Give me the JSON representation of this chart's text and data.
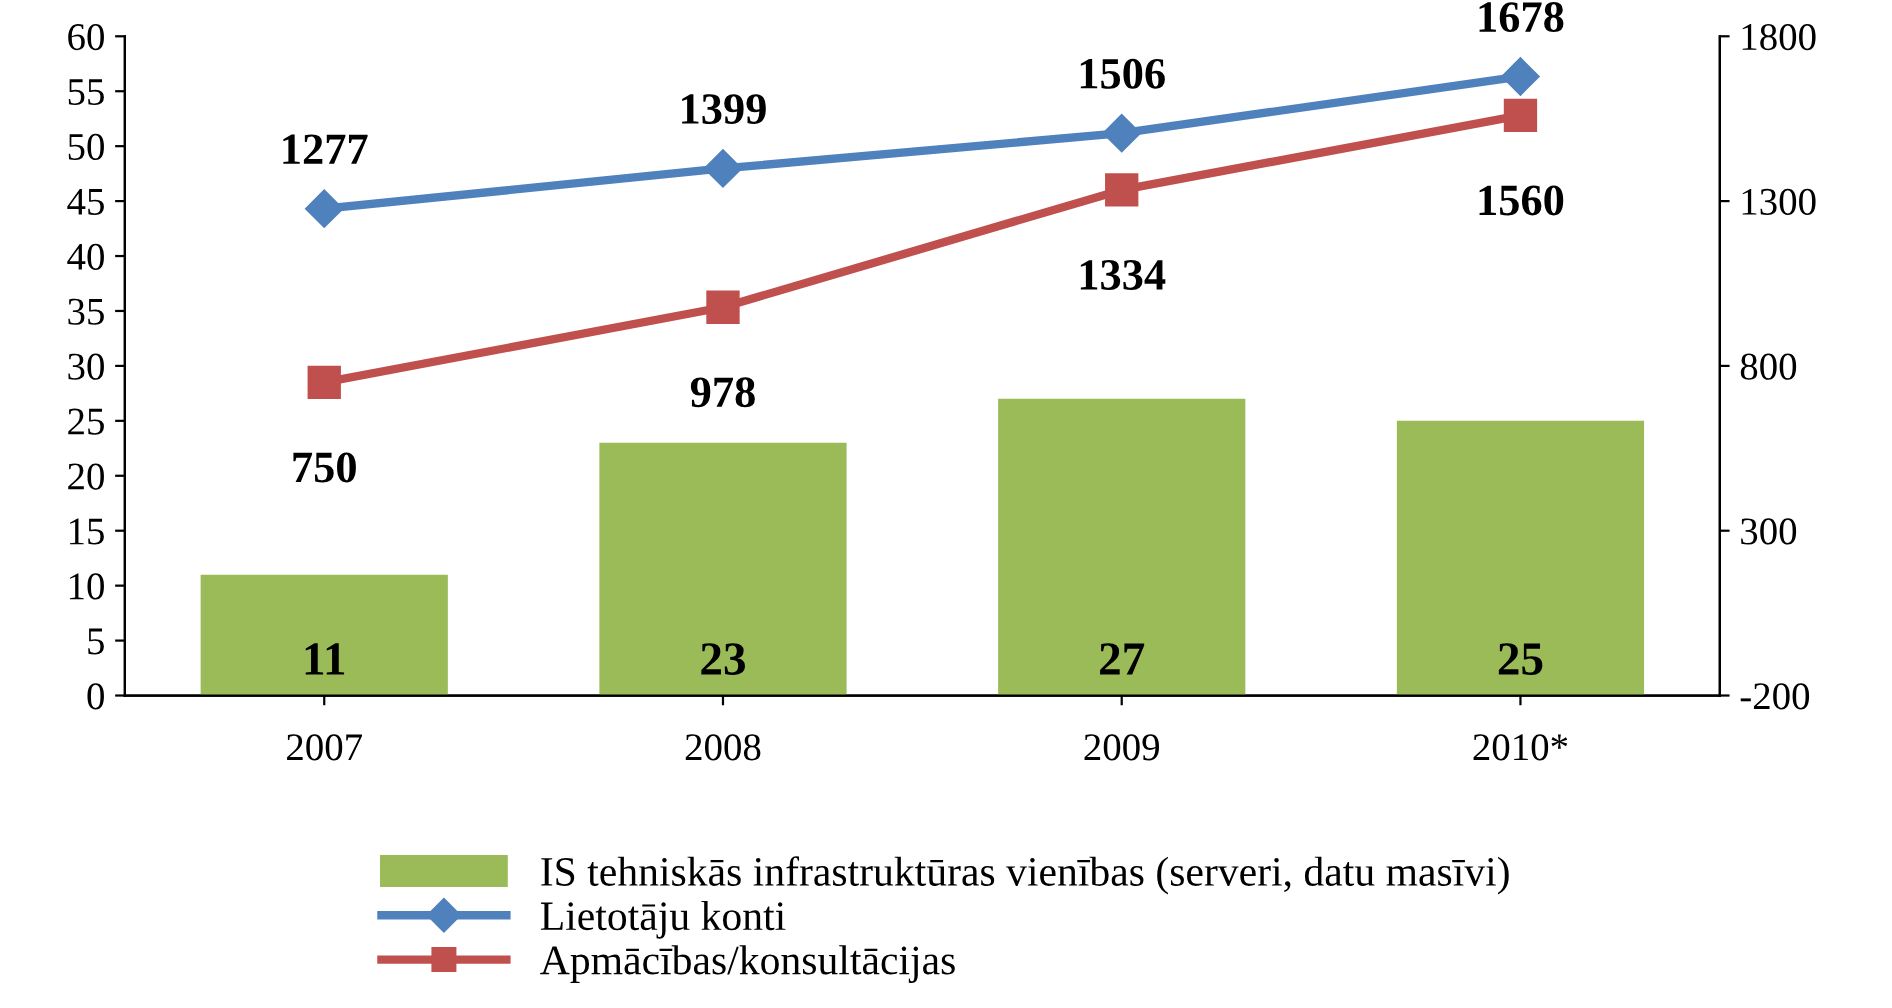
{
  "chart_data": {
    "type": "bar",
    "categories": [
      "2007",
      "2008",
      "2009",
      "2010*"
    ],
    "series": [
      {
        "name": "IS tehniskās infrastruktūras vienības (serveri, datu masīvi)",
        "color": "#9bbb59",
        "values": [
          11,
          23,
          27,
          25
        ]
      },
      {
        "name": "Lietotāju konti",
        "type": "line",
        "axis": "y2",
        "color": "#4f81bd",
        "marker": "diamond",
        "values": [
          1277,
          1399,
          1506,
          1678
        ]
      },
      {
        "name": "Apmācības/konsultācijas",
        "type": "line",
        "axis": "y2",
        "color": "#c0504d",
        "marker": "square",
        "values": [
          750,
          978,
          1334,
          1560
        ]
      }
    ],
    "ylim": [
      0,
      60
    ],
    "yticks": [
      0,
      5,
      10,
      15,
      20,
      25,
      30,
      35,
      40,
      45,
      50,
      55,
      60
    ],
    "y2lim": [
      -200,
      1800
    ],
    "y2ticks": [
      -200,
      300,
      800,
      1300,
      1800
    ],
    "data_labels": true,
    "grid": false,
    "legend": "bottom"
  }
}
